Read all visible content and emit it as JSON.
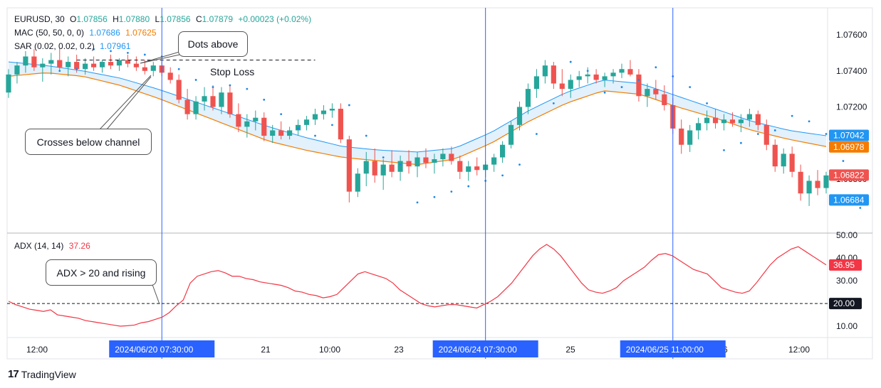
{
  "legend": {
    "symbol": "EURUSD, 30",
    "open_label": "O",
    "open": "1.07856",
    "high_label": "H",
    "high": "1.07880",
    "low_label": "L",
    "low": "1.07856",
    "close_label": "C",
    "close": "1.07879",
    "change": "+0.00023 (+0.02%)",
    "mac_label": "MAC (50, 50, 0, 0)",
    "mac_upper": "1.07686",
    "mac_lower": "1.07625",
    "sar_label": "SAR (0.02, 0.02, 0.2)",
    "sar_value": "1.07961",
    "adx_label": "ADX (14, 14)",
    "adx_value": "37.26"
  },
  "annotations": {
    "dots_above": "Dots above",
    "crosses_below": "Crosses below channel",
    "stop_loss": "Stop Loss",
    "adx_rising": "ADX > 20 and rising"
  },
  "brand": {
    "logo": "17",
    "name": "TradingView"
  },
  "colors": {
    "up": "#26a69a",
    "down": "#ef5350",
    "mac_upper": "#2196f3",
    "mac_lower": "#f57c00",
    "channel_fill": "#dbeefb",
    "sar": "#1e88e5",
    "adx": "#f23645",
    "vline": "#2962ff",
    "date_badge": "#2962ff"
  },
  "chart_data": [
    {
      "type": "candlestick",
      "title": "EURUSD, 30",
      "ylim": [
        1.065,
        1.0775
      ],
      "price_ticks": [
        "1.07600",
        "1.07400",
        "1.07200",
        "1.06800"
      ],
      "price_tick_values": [
        1.076,
        1.074,
        1.072,
        1.068
      ],
      "price_badges": [
        {
          "label": "1.07042",
          "value": 1.07042,
          "color": "#2196f3"
        },
        {
          "label": "1.06978",
          "value": 1.06978,
          "color": "#f57c00"
        },
        {
          "label": "1.06822",
          "value": 1.06822,
          "color": "#ef5350"
        },
        {
          "label": "1.06684",
          "value": 1.06684,
          "color": "#2196f3"
        }
      ],
      "stop_loss_level": 1.0746,
      "ohlc": [
        [
          1.0728,
          1.0741,
          1.0725,
          1.0738
        ],
        [
          1.0738,
          1.0745,
          1.0733,
          1.0743
        ],
        [
          1.0743,
          1.0751,
          1.0739,
          1.0748
        ],
        [
          1.0748,
          1.0752,
          1.074,
          1.0742
        ],
        [
          1.0742,
          1.0747,
          1.0734,
          1.0744
        ],
        [
          1.0744,
          1.075,
          1.0738,
          1.0746
        ],
        [
          1.0746,
          1.0753,
          1.074,
          1.0742
        ],
        [
          1.0742,
          1.0748,
          1.0737,
          1.0745
        ],
        [
          1.0745,
          1.0749,
          1.0739,
          1.0741
        ],
        [
          1.0741,
          1.0747,
          1.0738,
          1.0744
        ],
        [
          1.0744,
          1.0748,
          1.074,
          1.0742
        ],
        [
          1.0742,
          1.0746,
          1.0739,
          1.0745
        ],
        [
          1.0745,
          1.0749,
          1.0741,
          1.0743
        ],
        [
          1.0743,
          1.0747,
          1.074,
          1.0746
        ],
        [
          1.0746,
          1.0749,
          1.0742,
          1.0744
        ],
        [
          1.0744,
          1.0748,
          1.074,
          1.0742
        ],
        [
          1.0742,
          1.0746,
          1.0738,
          1.074
        ],
        [
          1.074,
          1.0745,
          1.0737,
          1.0743
        ],
        [
          1.0743,
          1.0746,
          1.0737,
          1.0739
        ],
        [
          1.0739,
          1.0742,
          1.0733,
          1.0735
        ],
        [
          1.0735,
          1.0738,
          1.0722,
          1.0724
        ],
        [
          1.0724,
          1.073,
          1.0713,
          1.0716
        ],
        [
          1.0716,
          1.0726,
          1.0713,
          1.0723
        ],
        [
          1.0723,
          1.0731,
          1.0718,
          1.0726
        ],
        [
          1.0726,
          1.0732,
          1.0718,
          1.072
        ],
        [
          1.072,
          1.0731,
          1.0716,
          1.0728
        ],
        [
          1.0728,
          1.0732,
          1.0714,
          1.0716
        ],
        [
          1.0716,
          1.0722,
          1.0706,
          1.0709
        ],
        [
          1.0709,
          1.0716,
          1.0703,
          1.0712
        ],
        [
          1.0712,
          1.0718,
          1.0707,
          1.0714
        ],
        [
          1.0714,
          1.0717,
          1.0701,
          1.0704
        ],
        [
          1.0704,
          1.071,
          1.07,
          1.0707
        ],
        [
          1.0707,
          1.0712,
          1.0702,
          1.0704
        ],
        [
          1.0704,
          1.0709,
          1.0702,
          1.0707
        ],
        [
          1.0707,
          1.0713,
          1.0704,
          1.071
        ],
        [
          1.071,
          1.0715,
          1.0707,
          1.0713
        ],
        [
          1.0713,
          1.0719,
          1.071,
          1.0716
        ],
        [
          1.0716,
          1.0721,
          1.0713,
          1.0718
        ],
        [
          1.0718,
          1.0722,
          1.0714,
          1.0719
        ],
        [
          1.0719,
          1.0722,
          1.07,
          1.0702
        ],
        [
          1.0702,
          1.0704,
          1.0667,
          1.0673
        ],
        [
          1.0673,
          1.0686,
          1.067,
          1.0683
        ],
        [
          1.0683,
          1.0695,
          1.0676,
          1.069
        ],
        [
          1.069,
          1.0697,
          1.0678,
          1.0682
        ],
        [
          1.0682,
          1.0691,
          1.0674,
          1.0688
        ],
        [
          1.0688,
          1.0696,
          1.0681,
          1.0684
        ],
        [
          1.0684,
          1.0693,
          1.0679,
          1.069
        ],
        [
          1.069,
          1.0696,
          1.0683,
          1.0687
        ],
        [
          1.0687,
          1.0695,
          1.0681,
          1.0692
        ],
        [
          1.0692,
          1.0697,
          1.0686,
          1.0689
        ],
        [
          1.0689,
          1.0694,
          1.0683,
          1.0691
        ],
        [
          1.0691,
          1.0697,
          1.0687,
          1.0694
        ],
        [
          1.0694,
          1.0698,
          1.0688,
          1.069
        ],
        [
          1.069,
          1.0693,
          1.068,
          1.0684
        ],
        [
          1.0684,
          1.069,
          1.0679,
          1.0687
        ],
        [
          1.0687,
          1.0692,
          1.0682,
          1.0685
        ],
        [
          1.0685,
          1.069,
          1.0681,
          1.0688
        ],
        [
          1.0688,
          1.0694,
          1.0684,
          1.0692
        ],
        [
          1.0692,
          1.0701,
          1.0689,
          1.0699
        ],
        [
          1.0699,
          1.0712,
          1.0697,
          1.071
        ],
        [
          1.071,
          1.0723,
          1.0707,
          1.072
        ],
        [
          1.072,
          1.0733,
          1.0716,
          1.073
        ],
        [
          1.073,
          1.0741,
          1.0725,
          1.0737
        ],
        [
          1.0737,
          1.0746,
          1.0733,
          1.0743
        ],
        [
          1.0743,
          1.0745,
          1.073,
          1.0733
        ],
        [
          1.0733,
          1.0741,
          1.0726,
          1.073
        ],
        [
          1.073,
          1.0738,
          1.0725,
          1.0735
        ],
        [
          1.0735,
          1.074,
          1.0731,
          1.0737
        ],
        [
          1.0737,
          1.0742,
          1.0733,
          1.0738
        ],
        [
          1.0738,
          1.0741,
          1.0733,
          1.0735
        ],
        [
          1.0735,
          1.0739,
          1.0731,
          1.0737
        ],
        [
          1.0737,
          1.0741,
          1.0733,
          1.0739
        ],
        [
          1.0739,
          1.0744,
          1.0736,
          1.0741
        ],
        [
          1.0741,
          1.0746,
          1.0737,
          1.0738
        ],
        [
          1.0738,
          1.0741,
          1.0723,
          1.0726
        ],
        [
          1.0726,
          1.0733,
          1.072,
          1.073
        ],
        [
          1.073,
          1.0735,
          1.0724,
          1.0727
        ],
        [
          1.0727,
          1.0732,
          1.0718,
          1.0721
        ],
        [
          1.0721,
          1.0725,
          1.0705,
          1.0708
        ],
        [
          1.0708,
          1.0713,
          1.0694,
          1.0699
        ],
        [
          1.0699,
          1.071,
          1.0695,
          1.0707
        ],
        [
          1.0707,
          1.0714,
          1.0702,
          1.0711
        ],
        [
          1.0711,
          1.0718,
          1.0707,
          1.0714
        ],
        [
          1.0714,
          1.0719,
          1.0708,
          1.0711
        ],
        [
          1.0711,
          1.0716,
          1.0707,
          1.0713
        ],
        [
          1.0713,
          1.0717,
          1.0709,
          1.0711
        ],
        [
          1.0711,
          1.0716,
          1.0706,
          1.0713
        ],
        [
          1.0713,
          1.0719,
          1.0709,
          1.0716
        ],
        [
          1.0716,
          1.0718,
          1.0707,
          1.071
        ],
        [
          1.071,
          1.0713,
          1.0696,
          1.0699
        ],
        [
          1.0699,
          1.0702,
          1.0684,
          1.0687
        ],
        [
          1.0687,
          1.0697,
          1.0683,
          1.0694
        ],
        [
          1.0694,
          1.0698,
          1.0681,
          1.0684
        ],
        [
          1.0684,
          1.0688,
          1.0668,
          1.0672
        ],
        [
          1.0672,
          1.0682,
          1.0665,
          1.0679
        ],
        [
          1.0679,
          1.0685,
          1.0671,
          1.0675
        ],
        [
          1.0675,
          1.0684,
          1.0672,
          1.0682
        ]
      ],
      "mac_upper": [
        1.0745,
        1.0743,
        1.074,
        1.0736,
        1.073,
        1.0723,
        1.0716,
        1.0709,
        1.0703,
        1.0698,
        1.0696,
        1.0695,
        1.0697,
        1.0706,
        1.0718,
        1.0728,
        1.0735,
        1.0733,
        1.0726,
        1.0719,
        1.0712,
        1.0707,
        1.0704
      ],
      "mac_lower": [
        1.0737,
        1.0739,
        1.0737,
        1.0732,
        1.0725,
        1.0717,
        1.0709,
        1.0701,
        1.0696,
        1.0692,
        1.069,
        1.0688,
        1.0691,
        1.07,
        1.0712,
        1.0722,
        1.0729,
        1.0727,
        1.072,
        1.0714,
        1.0707,
        1.0702,
        1.0698
      ],
      "sar": [
        [
          6,
          1.074
        ],
        [
          8,
          1.0741
        ],
        [
          10,
          1.0752
        ],
        [
          12,
          1.0751
        ],
        [
          14,
          1.075
        ],
        [
          16,
          1.0749
        ],
        [
          18,
          1.0748
        ],
        [
          20,
          1.0741
        ],
        [
          22,
          1.0735
        ],
        [
          24,
          1.0731
        ],
        [
          26,
          1.0732
        ],
        [
          28,
          1.073
        ],
        [
          30,
          1.0724
        ],
        [
          32,
          1.0716
        ],
        [
          34,
          1.0708
        ],
        [
          36,
          1.0704
        ],
        [
          38,
          1.071
        ],
        [
          40,
          1.0721
        ],
        [
          42,
          1.0704
        ],
        [
          44,
          1.0692
        ],
        [
          46,
          1.0688
        ],
        [
          48,
          1.0667
        ],
        [
          50,
          1.067
        ],
        [
          52,
          1.0673
        ],
        [
          54,
          1.0676
        ],
        [
          56,
          1.0679
        ],
        [
          58,
          1.0682
        ],
        [
          60,
          1.0688
        ],
        [
          62,
          1.0705
        ],
        [
          64,
          1.0722
        ],
        [
          66,
          1.0745
        ],
        [
          68,
          1.074
        ],
        [
          70,
          1.0728
        ],
        [
          72,
          1.0731
        ],
        [
          74,
          1.0735
        ],
        [
          76,
          1.0742
        ],
        [
          78,
          1.0737
        ],
        [
          80,
          1.0731
        ],
        [
          82,
          1.0722
        ],
        [
          84,
          1.0696
        ],
        [
          86,
          1.07
        ],
        [
          88,
          1.0705
        ],
        [
          90,
          1.0707
        ],
        [
          92,
          1.0715
        ],
        [
          94,
          1.0712
        ],
        [
          96,
          1.0705
        ],
        [
          98,
          1.069
        ],
        [
          100,
          1.0664
        ]
      ],
      "markers": [
        {
          "date": "2024/06/20",
          "time": "07:30:00"
        },
        {
          "date": "2024/06/24",
          "time": "07:30:00"
        },
        {
          "date": "2024/06/25",
          "time": "11:00:00"
        }
      ],
      "x_ticks": [
        "12:00",
        "21",
        "10:00",
        "23",
        "25",
        "26",
        "12:00"
      ]
    },
    {
      "type": "line",
      "title": "ADX (14, 14)",
      "ylim": [
        5,
        51
      ],
      "y_ticks": [
        "50.00",
        "40.00",
        "30.00",
        "10.00"
      ],
      "y_tick_values": [
        50,
        40,
        30,
        10
      ],
      "threshold": 20,
      "threshold_label": "20.00",
      "last_badge": "36.95",
      "last_value": 36.95,
      "values": [
        21,
        19.5,
        18.5,
        17.5,
        17,
        16.5,
        17.2,
        15,
        14.5,
        14,
        13.5,
        12.5,
        12,
        11.5,
        11,
        10.5,
        10,
        10.2,
        10.5,
        11.5,
        12,
        13,
        14,
        16,
        19,
        21.5,
        29,
        32,
        33,
        34,
        34.5,
        33.5,
        32,
        32,
        31,
        30.5,
        29.5,
        29,
        28.5,
        28,
        27,
        25.5,
        25,
        24,
        23.5,
        22.5,
        23,
        24,
        27,
        30,
        33,
        34,
        33,
        32,
        31,
        29,
        26,
        24,
        22,
        20,
        19,
        18.5,
        19,
        19.5,
        19.5,
        19,
        18.5,
        18,
        19.5,
        21,
        23,
        26,
        29,
        33,
        37,
        41,
        44,
        46,
        44,
        41,
        37,
        33,
        29,
        26,
        25,
        24.5,
        25.5,
        27,
        30,
        32,
        34,
        36,
        39,
        41.5,
        42,
        41,
        39,
        37,
        35,
        34,
        33,
        30,
        27,
        26,
        25,
        24.5,
        25.5,
        29,
        33,
        37,
        40,
        42,
        44,
        45,
        43,
        41,
        39,
        37
      ]
    }
  ]
}
